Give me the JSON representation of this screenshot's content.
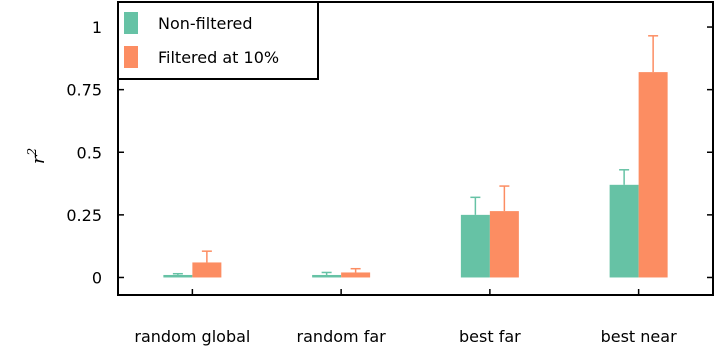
{
  "chart_data": {
    "type": "bar",
    "title": "",
    "xlabel": "",
    "ylabel": "r",
    "ylabel_superscript": "2",
    "ylim": [
      -0.07,
      1.1
    ],
    "yticks": [
      {
        "value": 0,
        "label": "0"
      },
      {
        "value": 0.25,
        "label": "0.25"
      },
      {
        "value": 0.5,
        "label": "0.5"
      },
      {
        "value": 0.75,
        "label": "0.75"
      },
      {
        "value": 1,
        "label": "1"
      }
    ],
    "categories": [
      "random global",
      "random far",
      "best far",
      "best near"
    ],
    "series": [
      {
        "name": "Non-filtered",
        "color": "#66c2a5",
        "values": [
          0.01,
          0.01,
          0.25,
          0.37
        ],
        "error_upper": [
          0.015,
          0.02,
          0.32,
          0.43
        ]
      },
      {
        "name": "Filtered at 10%",
        "color": "#fc8d62",
        "values": [
          0.06,
          0.02,
          0.265,
          0.82
        ],
        "error_upper": [
          0.105,
          0.035,
          0.365,
          0.965
        ]
      }
    ],
    "legend": "top-left",
    "grid": false
  }
}
